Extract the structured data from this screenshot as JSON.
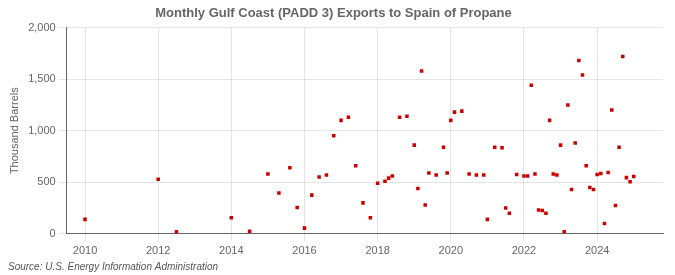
{
  "chart_data": {
    "type": "scatter",
    "title": "Monthly Gulf Coast (PADD 3) Exports to Spain of Propane",
    "ylabel": "Thousand Barrels",
    "annotations": [
      "Source: U.S. Energy Information Administration"
    ],
    "color": "#cc0000",
    "marker": "square",
    "grid": true,
    "xlim": [
      2009.5,
      2025.8
    ],
    "ylim": [
      0,
      2000
    ],
    "xticks": [
      2010,
      2012,
      2014,
      2016,
      2018,
      2020,
      2022,
      2024
    ],
    "yticks": [
      0,
      500,
      {
        "value": 1000,
        "label": "1,000"
      },
      {
        "value": 1500,
        "label": "1,500"
      },
      {
        "value": 2000,
        "label": "2,000"
      }
    ],
    "x": [
      2010.0,
      2012.0,
      2012.5,
      2014.0,
      2014.5,
      2015.0,
      2015.3,
      2015.6,
      2015.8,
      2016.0,
      2016.2,
      2016.4,
      2016.6,
      2016.8,
      2017.0,
      2017.2,
      2017.4,
      2017.6,
      2017.8,
      2018.0,
      2018.2,
      2018.3,
      2018.4,
      2018.6,
      2018.8,
      2019.0,
      2019.1,
      2019.2,
      2019.3,
      2019.4,
      2019.6,
      2019.8,
      2019.9,
      2020.0,
      2020.1,
      2020.3,
      2020.5,
      2020.7,
      2020.9,
      2021.0,
      2021.2,
      2021.4,
      2021.5,
      2021.6,
      2021.8,
      2022.0,
      2022.1,
      2022.2,
      2022.3,
      2022.4,
      2022.5,
      2022.6,
      2022.7,
      2022.8,
      2022.9,
      2023.0,
      2023.1,
      2023.2,
      2023.3,
      2023.4,
      2023.5,
      2023.6,
      2023.7,
      2023.8,
      2023.9,
      2024.0,
      2024.1,
      2024.2,
      2024.3,
      2024.4,
      2024.5,
      2024.6,
      2024.7,
      2024.8,
      2024.9,
      2025.0
    ],
    "values": [
      140,
      530,
      20,
      155,
      25,
      580,
      395,
      640,
      255,
      55,
      375,
      550,
      570,
      950,
      1100,
      1130,
      660,
      300,
      155,
      490,
      510,
      540,
      560,
      1130,
      1140,
      860,
      440,
      1580,
      280,
      590,
      570,
      840,
      590,
      1100,
      1180,
      1190,
      580,
      570,
      570,
      140,
      840,
      835,
      250,
      200,
      575,
      560,
      560,
      1440,
      580,
      230,
      225,
      200,
      1100,
      580,
      570,
      860,
      20,
      1250,
      430,
      880,
      1680,
      1540,
      660,
      450,
      430,
      575,
      585,
      100,
      595,
      1200,
      275,
      840,
      1720,
      545,
      505,
      555
    ]
  }
}
